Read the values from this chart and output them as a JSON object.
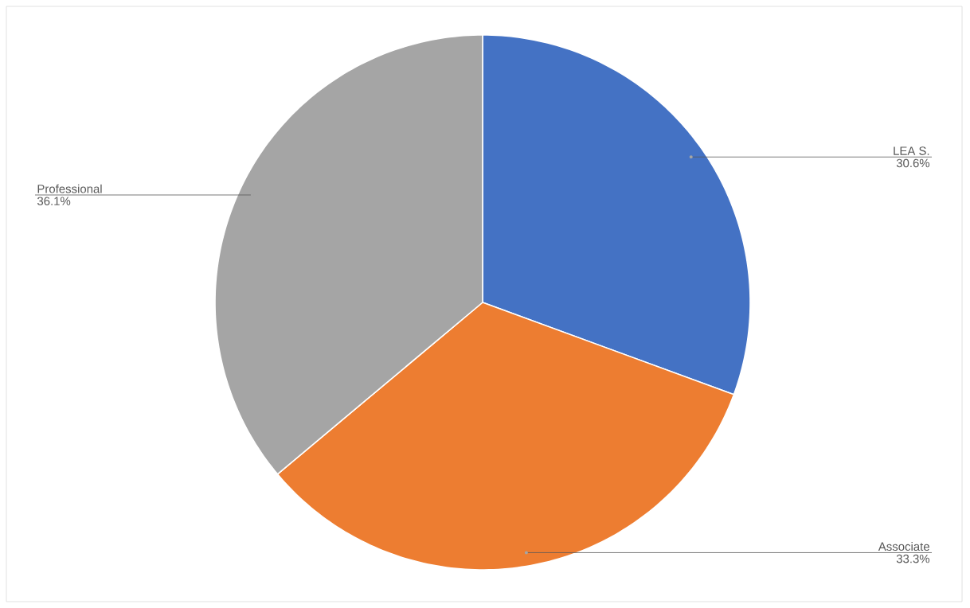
{
  "chart_data": {
    "type": "pie",
    "categories": [
      "LEA S.",
      "Associate",
      "Professional"
    ],
    "values": [
      30.6,
      33.3,
      36.1
    ],
    "value_labels": [
      "30.6%",
      "33.3%",
      "36.1%"
    ],
    "colors": [
      "#4472c4",
      "#ed7d31",
      "#a5a5a5"
    ]
  }
}
